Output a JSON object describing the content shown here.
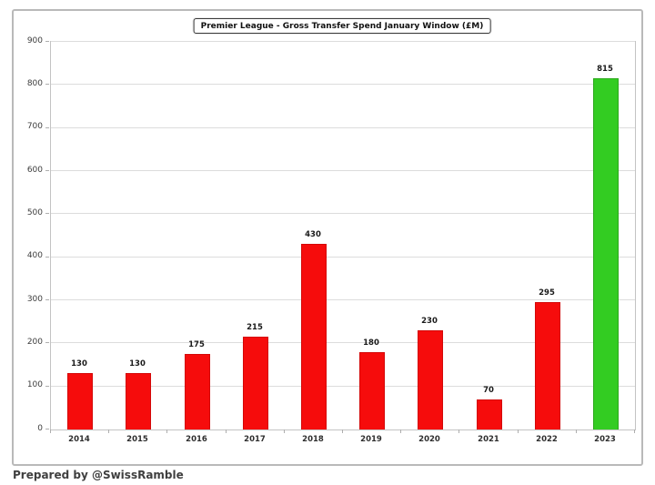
{
  "chart_data": {
    "type": "bar",
    "title": "Premier League - Gross Transfer Spend January Window (£M)",
    "categories": [
      "2014",
      "2015",
      "2016",
      "2017",
      "2018",
      "2019",
      "2020",
      "2021",
      "2022",
      "2023"
    ],
    "values": [
      130,
      130,
      175,
      215,
      430,
      180,
      230,
      70,
      295,
      815
    ],
    "bar_colors": [
      "#f60c0c",
      "#f60c0c",
      "#f60c0c",
      "#f60c0c",
      "#f60c0c",
      "#f60c0c",
      "#f60c0c",
      "#f60c0c",
      "#f60c0c",
      "#33cc22"
    ],
    "bar_border_colors": [
      "#d40808",
      "#d40808",
      "#d40808",
      "#d40808",
      "#d40808",
      "#d40808",
      "#d40808",
      "#d40808",
      "#d40808",
      "#2aa91a"
    ],
    "highlight_category": "2023",
    "xlabel": "",
    "ylabel": "",
    "ylim": [
      0,
      900
    ],
    "ytick_step": 100,
    "grid": "horizontal",
    "legend": "none",
    "data_labels": true
  },
  "footer": {
    "credit": "Prepared by @SwissRamble"
  },
  "colors": {
    "default_bar": "#f60c0c",
    "highlight_bar": "#33cc22",
    "gridline": "#dcdcdc",
    "frame_border": "#b9b9b9"
  }
}
